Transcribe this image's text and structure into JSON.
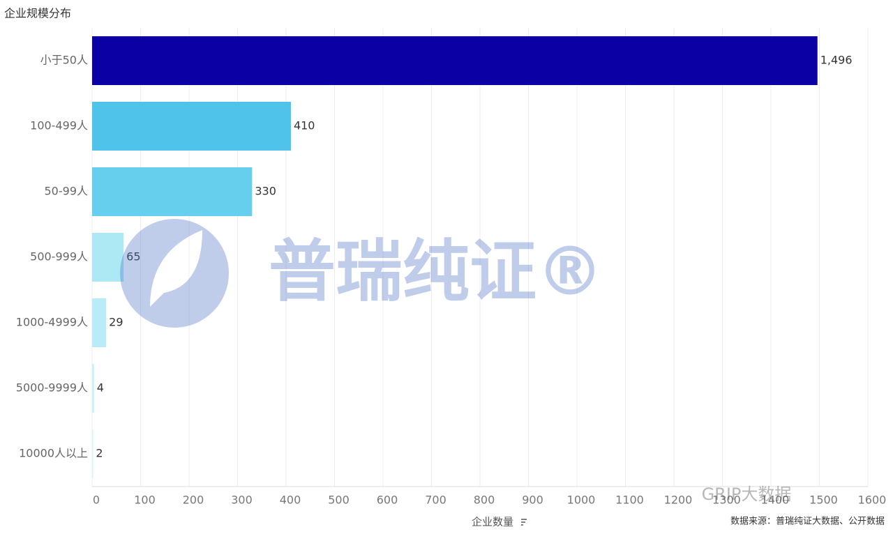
{
  "chart_data": {
    "type": "barh",
    "title": "企业规模分布",
    "categories": [
      "小于50人",
      "100-499人",
      "50-99人",
      "500-999人",
      "1000-4999人",
      "5000-9999人",
      "10000人以上"
    ],
    "values": [
      1496,
      410,
      330,
      65,
      29,
      4,
      2
    ],
    "value_labels": [
      "1,496",
      "410",
      "330",
      "65",
      "29",
      "4",
      "2"
    ],
    "colors": [
      "#0a00a3",
      "#4fc3ea",
      "#66cfee",
      "#ade8f5",
      "#b8ecf7",
      "#c8f1fa",
      "#d5f5fb"
    ],
    "xlim": [
      0,
      1600
    ],
    "xticks": [
      0,
      100,
      200,
      300,
      400,
      500,
      600,
      700,
      800,
      900,
      1000,
      1100,
      1200,
      1300,
      1400,
      1500,
      1600
    ],
    "xlabel": "企业数量",
    "grid": true,
    "source": "数据来源：普瑞纯证大数据、公开数据",
    "watermarks": [
      "普瑞纯证®",
      "GRIP大数据"
    ]
  }
}
